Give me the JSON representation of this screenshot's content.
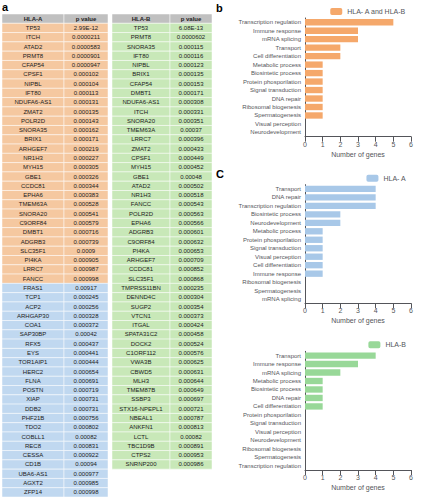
{
  "chart_data": [
    {
      "type": "table",
      "title": "a",
      "columns": [
        "HLA-A",
        "p value",
        "HLA-B",
        "p value"
      ],
      "series": [
        {
          "name": "HLA-A",
          "categories": [
            "TP53",
            "ITCH",
            "ATAD2",
            "PRMT8",
            "CFAP54",
            "CPSF1",
            "NIPBL",
            "IFT80",
            "NDUFA6-AS1",
            "ZMAT2",
            "POLR2D",
            "SNORA35",
            "BRIX1",
            "ARHGEF7",
            "NR1H3",
            "MYH15",
            "GBE1",
            "CCDC81",
            "EPHA6",
            "TMEM63A",
            "SNORA20",
            "C9ORF84",
            "DMBT1",
            "ADGRB3",
            "SLC35F1",
            "PI4KA",
            "LRRC7",
            "FANCC",
            "FRAS1",
            "TCP1",
            "ACP2",
            "ARHGAP30",
            "COA1",
            "SAP30BP",
            "RFX5",
            "EYS",
            "TOR1AIP1",
            "HERC2",
            "FLNA",
            "POSTN",
            "XIAP",
            "DDB2",
            "PHF21B",
            "TDO2",
            "COBLL1",
            "REC8",
            "CESSA",
            "CD1B",
            "UBA6-AS1",
            "AGXT2",
            "ZFP14"
          ],
          "values": [
            2.99e-12,
            2.11e-05,
            5.83e-05,
            9.01e-05,
            9.47e-05,
            0.000102,
            0.000104,
            0.000113,
            0.000131,
            0.000135,
            0.000143,
            0.000162,
            0.000171,
            0.000219,
            0.000227,
            0.000305,
            0.000326,
            0.000344,
            0.000383,
            0.000528,
            0.000541,
            0.000579,
            0.000716,
            0.000739,
            0.0009,
            0.000905,
            0.000987,
            0.000998,
            0.00917,
            0.000245,
            0.000256,
            0.000328,
            0.000372,
            0.00042,
            0.000437,
            0.000441,
            0.000444,
            0.000654,
            0.000691,
            0.000719,
            0.000731,
            0.000731,
            0.000756,
            0.000802,
            0.00082,
            0.000831,
            0.000922,
            0.00094,
            0.000977,
            0.000985,
            0.000998
          ],
          "value_labels": [
            "2.99E-12",
            "0.0000211",
            "0.0000583",
            "0.0000901",
            "0.0000947",
            "0.000102",
            "0.000104",
            "0.000113",
            "0.000131",
            "0.000135",
            "0.000143",
            "0.000162",
            "0.000171",
            "0.000219",
            "0.000227",
            "0.000305",
            "0.000326",
            "0.000344",
            "0.000383",
            "0.000528",
            "0.000541",
            "0.000579",
            "0.000716",
            "0.000739",
            "0.0009",
            "0.000905",
            "0.000987",
            "0.000998",
            "0.00917",
            "0.000245",
            "0.000256",
            "0.000328",
            "0.000372",
            "0.00042",
            "0.000437",
            "0.000441",
            "0.000444",
            "0.000654",
            "0.000691",
            "0.000719",
            "0.000731",
            "0.000731",
            "0.000756",
            "0.000802",
            "0.00082",
            "0.000831",
            "0.000922",
            "0.00094",
            "0.000977",
            "0.000985",
            "0.000998"
          ],
          "colors": [
            "#F5C8A0",
            "#F5C8A0",
            "#F5C8A0",
            "#F5C8A0",
            "#F5C8A0",
            "#F5C8A0",
            "#F5C8A0",
            "#F5C8A0",
            "#F5C8A0",
            "#F5C8A0",
            "#F5C8A0",
            "#F5C8A0",
            "#F5C8A0",
            "#F5C8A0",
            "#F5C8A0",
            "#F5C8A0",
            "#F5C8A0",
            "#F5C8A0",
            "#F5C8A0",
            "#F5C8A0",
            "#F5C8A0",
            "#F5C8A0",
            "#F5C8A0",
            "#F5C8A0",
            "#F5C8A0",
            "#F5C8A0",
            "#F5C8A0",
            "#F5C8A0",
            "#C0D8F0",
            "#C0D8F0",
            "#C0D8F0",
            "#C0D8F0",
            "#C0D8F0",
            "#C0D8F0",
            "#C0D8F0",
            "#C0D8F0",
            "#C0D8F0",
            "#C0D8F0",
            "#C0D8F0",
            "#C0D8F0",
            "#C0D8F0",
            "#C0D8F0",
            "#C0D8F0",
            "#C0D8F0",
            "#C0D8F0",
            "#C0D8F0",
            "#C0D8F0",
            "#C0D8F0",
            "#C0D8F0",
            "#C0D8F0",
            "#C0D8F0"
          ]
        },
        {
          "name": "HLA-B",
          "categories": [
            "TP53",
            "PRMT8",
            "SNORA35",
            "IFT80",
            "NIPBL",
            "BRIX1",
            "CFAP54",
            "DMBT1",
            "NDUFA6-AS1",
            "ITCH",
            "SNORA20",
            "TMEM63A",
            "LRRC7",
            "ZMAT2",
            "CPSF1",
            "MYH15",
            "GBE1",
            "ATAD2",
            "NR1H3",
            "FANCC",
            "POLR2D",
            "EPHA6",
            "ADGRB3",
            "C9ORF84",
            "PI4KA",
            "ARHGEF7",
            "CCDC81",
            "SLC35F1",
            "TMPRSS11BN",
            "DENND4C",
            "SUGP2",
            "VTCN1",
            "ITGAL",
            "SPATA31C2",
            "DOCK2",
            "C1ORF112",
            "VWA3B",
            "CBWD5",
            "MLH3",
            "TMEM87B",
            "SSBP3",
            "STX16-NPEPL1",
            "NBEAL1",
            "ANKFN1",
            "LCTL",
            "TBC1D9B",
            "CTPS2",
            "SNRNP200"
          ],
          "values": [
            6.08e-13,
            6.02e-05,
            0.000115,
            0.000116,
            0.000123,
            0.000135,
            0.000153,
            0.000171,
            0.000308,
            0.000331,
            0.000351,
            0.00037,
            0.000396,
            0.000433,
            0.000449,
            0.000452,
            0.00048,
            0.000502,
            0.000518,
            0.000543,
            0.000563,
            0.000566,
            0.000601,
            0.000632,
            0.000653,
            0.000709,
            0.000852,
            0.000868,
            0.000235,
            0.000304,
            0.000354,
            0.000373,
            0.000424,
            0.000458,
            0.000524,
            0.000576,
            0.000625,
            0.000631,
            0.000644,
            0.000649,
            0.000697,
            0.000721,
            0.000787,
            0.000813,
            0.00082,
            0.000891,
            0.000953,
            0.000986
          ],
          "value_labels": [
            "6.08E-13",
            "0.0000602",
            "0.000115",
            "0.000116",
            "0.000123",
            "0.000135",
            "0.000153",
            "0.000171",
            "0.000308",
            "0.000331",
            "0.000351",
            "0.00037",
            "0.000396",
            "0.000433",
            "0.000449",
            "0.000452",
            "0.00048",
            "0.000502",
            "0.000518",
            "0.000543",
            "0.000563",
            "0.000566",
            "0.000601",
            "0.000632",
            "0.000653",
            "0.000709",
            "0.000852",
            "0.000868",
            "0.000235",
            "0.000304",
            "0.000354",
            "0.000373",
            "0.000424",
            "0.000458",
            "0.000524",
            "0.000576",
            "0.000625",
            "0.000631",
            "0.000644",
            "0.000649",
            "0.000697",
            "0.000721",
            "0.000787",
            "0.000813",
            "0.00082",
            "0.000891",
            "0.000953",
            "0.000986"
          ],
          "color": "#C8E8B8"
        }
      ]
    },
    {
      "type": "bar",
      "title": "b",
      "orientation": "horizontal",
      "categories": [
        "Neurodevelopment",
        "Visual perception",
        "Spermatogenesis",
        "Ribosomal biogenesis",
        "DNA repair",
        "Signal transduction",
        "Protein phosporilation",
        "Biosintetic process",
        "Metabolic process",
        "Cell differentiation",
        "Transport",
        "mRNA splicing",
        "Immune response",
        "Transcription regulation"
      ],
      "series": [
        {
          "name": "HLA- A and HLA-B",
          "color": "#F5A86B",
          "values": [
            0,
            0,
            1,
            1,
            1,
            1,
            1,
            1,
            1,
            2,
            2,
            3,
            3,
            5
          ]
        }
      ],
      "xlabel": "Number of genes",
      "xlim": [
        0,
        6
      ],
      "xticks": [
        0,
        1,
        2,
        3,
        4,
        5,
        6
      ],
      "legend": "upper right",
      "grid": false
    },
    {
      "type": "bar",
      "title": "C",
      "orientation": "horizontal",
      "categories": [
        "mRNA splicing",
        "Spermatogenesis",
        "Ribosomal biogenesis",
        "Immune response",
        "Cell differentiation",
        "Visual perception",
        "Signal transduction",
        "Protein phosporilation",
        "Metabolic process",
        "Neurodevelopment",
        "Biosintetic process",
        "Transcription regulation",
        "DNA repair",
        "Transport"
      ],
      "series": [
        {
          "name": "HLA- A",
          "color": "#A8C8E8",
          "values": [
            0,
            0,
            0,
            1,
            1,
            1,
            1,
            1,
            1,
            2,
            2,
            4,
            4,
            4
          ]
        }
      ],
      "xlabel": "Number of genes",
      "xlim": [
        0,
        6
      ],
      "xticks": [
        0,
        1,
        2,
        3,
        4,
        5,
        6
      ],
      "legend": "upper right",
      "grid": false
    },
    {
      "type": "bar",
      "orientation": "horizontal",
      "categories": [
        "Transcription regulation",
        "Spermatogenesis",
        "Ribosomal biogenesis",
        "Neurodevelopment",
        "Visual perception",
        "Signal transduction",
        "Protein phosporilation",
        "Cell differentiation",
        "DNA repair",
        "Biosintetic process",
        "Metabolic process",
        "mRNA splicing",
        "Immune response",
        "Transport"
      ],
      "series": [
        {
          "name": "HLA-B",
          "color": "#98D898",
          "values": [
            0,
            0,
            0,
            0,
            0,
            0,
            0,
            1,
            1,
            1,
            1,
            2,
            3,
            4
          ]
        }
      ],
      "xlabel": "Number of genes",
      "xlim": [
        0,
        6
      ],
      "xticks": [
        0,
        1,
        2,
        3,
        4,
        5,
        6
      ],
      "legend": "upper right",
      "grid": false
    }
  ]
}
